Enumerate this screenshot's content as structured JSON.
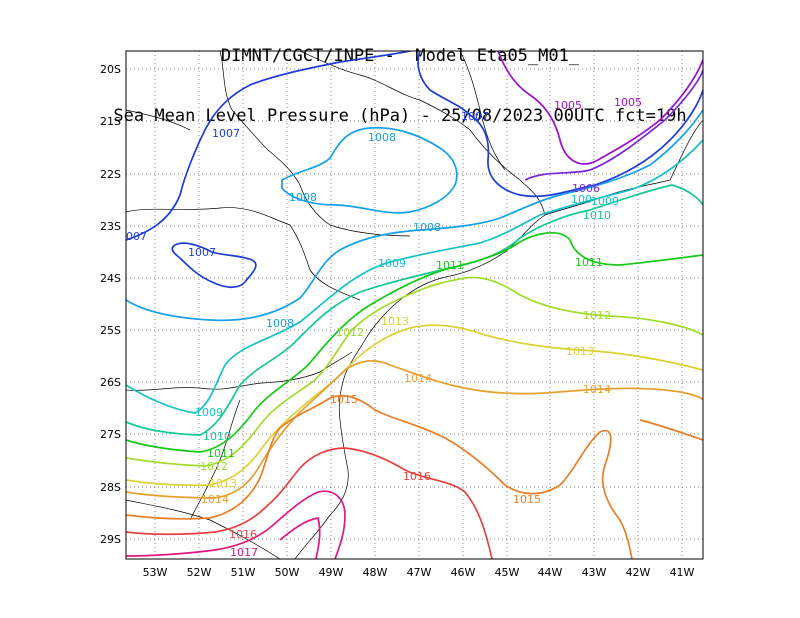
{
  "title": {
    "line1": "DIMNT/CGCT/INPE -  Model Eta05_M01_",
    "line2": "Sea Mean Level Pressure (hPa) - 25/08/2023 00UTC fct=19h"
  },
  "axes": {
    "lon_labels": [
      "53W",
      "52W",
      "51W",
      "50W",
      "49W",
      "48W",
      "47W",
      "46W",
      "45W",
      "44W",
      "43W",
      "42W",
      "41W"
    ],
    "lat_labels": [
      "20S",
      "21S",
      "22S",
      "23S",
      "24S",
      "25S",
      "26S",
      "27S",
      "28S",
      "29S"
    ]
  },
  "isobar_labels": {
    "l1005a": "1005",
    "l1005b": "1005",
    "l1006": "1006",
    "l1007a": "1007",
    "l1007b": "1007",
    "l1007c": "1007",
    "l1007d": "007",
    "l1008a": "1008",
    "l1008b": "1008",
    "l1008c": "1008",
    "l1008d": "1008",
    "l1009a": "1009",
    "l1009b": "1009",
    "l1009c": "1009",
    "l1009d": "100",
    "l1010a": "1010",
    "l1010b": "1010",
    "l1011a": "1011",
    "l1011b": "1011",
    "l1011c": "1011",
    "l1012a": "1012",
    "l1012b": "1012",
    "l1012c": "1012",
    "l1013a": "1013",
    "l1013b": "1013",
    "l1013c": "1013",
    "l1014a": "1014",
    "l1014b": "1014",
    "l1014c": "1014",
    "l1015a": "1015",
    "l1015b": "1015",
    "l1016a": "1016",
    "l1016b": "1016",
    "l1017": "1017"
  },
  "colors": {
    "c1005": "#9a10d0",
    "c1006": "#7a28d8",
    "c1007": "#1e3cd6",
    "c1008": "#15a0e8",
    "c1009": "#14c2c8",
    "c1010": "#12c896",
    "c1011": "#18c818",
    "c1012": "#a0dc2a",
    "c1013": "#dcd234",
    "c1014": "#e6a030",
    "c1015": "#e87e28",
    "c1016": "#e84040",
    "c1017": "#e01880"
  }
}
